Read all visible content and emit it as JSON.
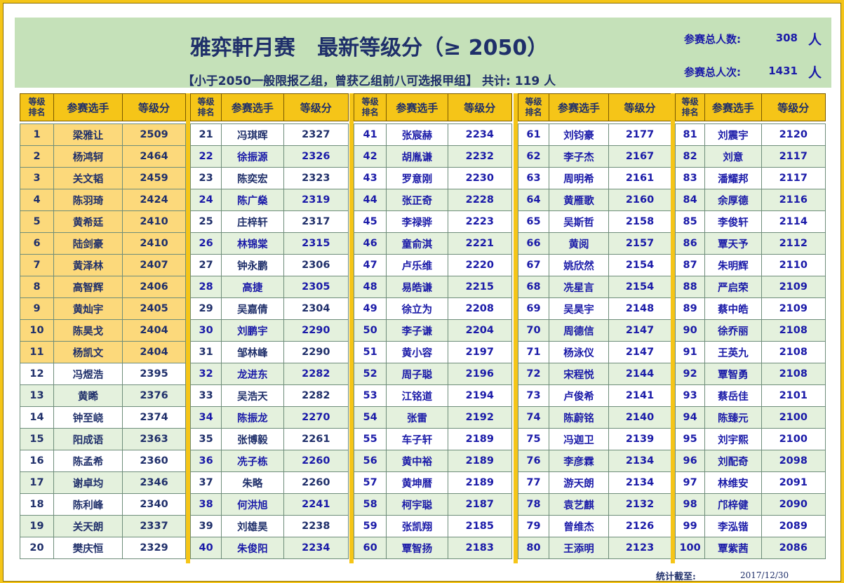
{
  "title": "雅弈軒月赛   最新等级分（≥ 2050）",
  "subtitle": "【小于2050一般限报乙组，曾获乙组前八可选报甲组】 共计: 119 人",
  "stats": {
    "participants_label": "参赛总人数:",
    "participants_value": "308",
    "participants_unit": "人",
    "entries_label": "参赛总人次:",
    "entries_value": "1431",
    "entries_unit": "人"
  },
  "headers": {
    "rank": "等级排名",
    "rank_line1": "等级",
    "rank_line2": "排名",
    "player": "参赛选手",
    "rating": "等级分"
  },
  "colors": {
    "frame": "#f5c518",
    "header_bg": "#c5e1b9",
    "top_rows": "#fcd97b",
    "even_rows": "#e4f1dd",
    "title": "#1f2f6a",
    "values": "#1a1aa8"
  },
  "footer": {
    "cutoff_label": "统计截至:",
    "cutoff_date": "2017/12/30"
  },
  "columns": [
    [
      {
        "rank": "1",
        "name": "梁雅让",
        "rating": "2509"
      },
      {
        "rank": "2",
        "name": "杨鸿轲",
        "rating": "2464"
      },
      {
        "rank": "3",
        "name": "关文韬",
        "rating": "2459"
      },
      {
        "rank": "4",
        "name": "陈羽琦",
        "rating": "2424"
      },
      {
        "rank": "5",
        "name": "黄希廷",
        "rating": "2410"
      },
      {
        "rank": "6",
        "name": "陆剑豪",
        "rating": "2410"
      },
      {
        "rank": "7",
        "name": "黄泽林",
        "rating": "2407"
      },
      {
        "rank": "8",
        "name": "高智辉",
        "rating": "2406"
      },
      {
        "rank": "9",
        "name": "黄灿宇",
        "rating": "2405"
      },
      {
        "rank": "10",
        "name": "陈昊戈",
        "rating": "2404"
      },
      {
        "rank": "11",
        "name": "杨凯文",
        "rating": "2404"
      },
      {
        "rank": "12",
        "name": "冯煜浩",
        "rating": "2395"
      },
      {
        "rank": "13",
        "name": "黄睎",
        "rating": "2376"
      },
      {
        "rank": "14",
        "name": "钟至峣",
        "rating": "2374"
      },
      {
        "rank": "15",
        "name": "阳成语",
        "rating": "2363"
      },
      {
        "rank": "16",
        "name": "陈孟希",
        "rating": "2360"
      },
      {
        "rank": "17",
        "name": "谢卓均",
        "rating": "2346"
      },
      {
        "rank": "18",
        "name": "陈利峰",
        "rating": "2340"
      },
      {
        "rank": "19",
        "name": "关天朗",
        "rating": "2337"
      },
      {
        "rank": "20",
        "name": "樊庆恒",
        "rating": "2329"
      }
    ],
    [
      {
        "rank": "21",
        "name": "冯琪晖",
        "rating": "2327"
      },
      {
        "rank": "22",
        "name": "徐振源",
        "rating": "2326"
      },
      {
        "rank": "23",
        "name": "陈奕宏",
        "rating": "2323"
      },
      {
        "rank": "24",
        "name": "陈广燊",
        "rating": "2319"
      },
      {
        "rank": "25",
        "name": "庄梓轩",
        "rating": "2317"
      },
      {
        "rank": "26",
        "name": "林锦棠",
        "rating": "2315"
      },
      {
        "rank": "27",
        "name": "钟永鹏",
        "rating": "2306"
      },
      {
        "rank": "28",
        "name": "高捷",
        "rating": "2305"
      },
      {
        "rank": "29",
        "name": "吴嘉倩",
        "rating": "2304"
      },
      {
        "rank": "30",
        "name": "刘鹏宇",
        "rating": "2290"
      },
      {
        "rank": "31",
        "name": "邹林峰",
        "rating": "2290"
      },
      {
        "rank": "32",
        "name": "龙进东",
        "rating": "2282"
      },
      {
        "rank": "33",
        "name": "吴浩天",
        "rating": "2282"
      },
      {
        "rank": "34",
        "name": "陈振龙",
        "rating": "2270"
      },
      {
        "rank": "35",
        "name": "张博毅",
        "rating": "2261"
      },
      {
        "rank": "36",
        "name": "冼子栋",
        "rating": "2260"
      },
      {
        "rank": "37",
        "name": "朱略",
        "rating": "2260"
      },
      {
        "rank": "38",
        "name": "何洪旭",
        "rating": "2241"
      },
      {
        "rank": "39",
        "name": "刘雄昊",
        "rating": "2238"
      },
      {
        "rank": "40",
        "name": "朱俊阳",
        "rating": "2234"
      }
    ],
    [
      {
        "rank": "41",
        "name": "张宸赫",
        "rating": "2234"
      },
      {
        "rank": "42",
        "name": "胡胤谦",
        "rating": "2232"
      },
      {
        "rank": "43",
        "name": "罗意刚",
        "rating": "2230"
      },
      {
        "rank": "44",
        "name": "张正奇",
        "rating": "2228"
      },
      {
        "rank": "45",
        "name": "李禄骅",
        "rating": "2223"
      },
      {
        "rank": "46",
        "name": "童俞淇",
        "rating": "2221"
      },
      {
        "rank": "47",
        "name": "卢乐维",
        "rating": "2220"
      },
      {
        "rank": "48",
        "name": "易皓谦",
        "rating": "2215"
      },
      {
        "rank": "49",
        "name": "徐立为",
        "rating": "2208"
      },
      {
        "rank": "50",
        "name": "李子谦",
        "rating": "2204"
      },
      {
        "rank": "51",
        "name": "黄小容",
        "rating": "2197"
      },
      {
        "rank": "52",
        "name": "周子聪",
        "rating": "2196"
      },
      {
        "rank": "53",
        "name": "江铭道",
        "rating": "2194"
      },
      {
        "rank": "54",
        "name": "张雷",
        "rating": "2192"
      },
      {
        "rank": "55",
        "name": "车子轩",
        "rating": "2189"
      },
      {
        "rank": "56",
        "name": "黄中裕",
        "rating": "2189"
      },
      {
        "rank": "57",
        "name": "黄坤暦",
        "rating": "2189"
      },
      {
        "rank": "58",
        "name": "柯宇聪",
        "rating": "2187"
      },
      {
        "rank": "59",
        "name": "张凯翔",
        "rating": "2185"
      },
      {
        "rank": "60",
        "name": "覃智扬",
        "rating": "2183"
      }
    ],
    [
      {
        "rank": "61",
        "name": "刘钧豪",
        "rating": "2177"
      },
      {
        "rank": "62",
        "name": "李子杰",
        "rating": "2167"
      },
      {
        "rank": "63",
        "name": "周明希",
        "rating": "2161"
      },
      {
        "rank": "64",
        "name": "黄雁歌",
        "rating": "2160"
      },
      {
        "rank": "65",
        "name": "吴斯哲",
        "rating": "2158"
      },
      {
        "rank": "66",
        "name": "黄阅",
        "rating": "2157"
      },
      {
        "rank": "67",
        "name": "姚欣然",
        "rating": "2154"
      },
      {
        "rank": "68",
        "name": "冼星言",
        "rating": "2154"
      },
      {
        "rank": "69",
        "name": "吴昊宇",
        "rating": "2148"
      },
      {
        "rank": "70",
        "name": "周德信",
        "rating": "2147"
      },
      {
        "rank": "71",
        "name": "杨泳仪",
        "rating": "2147"
      },
      {
        "rank": "72",
        "name": "宋程悦",
        "rating": "2144"
      },
      {
        "rank": "73",
        "name": "卢俊希",
        "rating": "2141"
      },
      {
        "rank": "74",
        "name": "陈蔚铭",
        "rating": "2140"
      },
      {
        "rank": "75",
        "name": "冯迦卫",
        "rating": "2139"
      },
      {
        "rank": "76",
        "name": "李彦霖",
        "rating": "2134"
      },
      {
        "rank": "77",
        "name": "游天朗",
        "rating": "2134"
      },
      {
        "rank": "78",
        "name": "袁艺麒",
        "rating": "2132"
      },
      {
        "rank": "79",
        "name": "曾维杰",
        "rating": "2126"
      },
      {
        "rank": "80",
        "name": "王添明",
        "rating": "2123"
      }
    ],
    [
      {
        "rank": "81",
        "name": "刘震宇",
        "rating": "2120"
      },
      {
        "rank": "82",
        "name": "刘意",
        "rating": "2117"
      },
      {
        "rank": "83",
        "name": "潘耀邦",
        "rating": "2117"
      },
      {
        "rank": "84",
        "name": "余厚德",
        "rating": "2116"
      },
      {
        "rank": "85",
        "name": "李俊轩",
        "rating": "2114"
      },
      {
        "rank": "86",
        "name": "覃天予",
        "rating": "2112"
      },
      {
        "rank": "87",
        "name": "朱明辉",
        "rating": "2110"
      },
      {
        "rank": "88",
        "name": "严启荣",
        "rating": "2109"
      },
      {
        "rank": "89",
        "name": "蔡中皓",
        "rating": "2109"
      },
      {
        "rank": "90",
        "name": "徐乔丽",
        "rating": "2108"
      },
      {
        "rank": "91",
        "name": "王英九",
        "rating": "2108"
      },
      {
        "rank": "92",
        "name": "覃智勇",
        "rating": "2108"
      },
      {
        "rank": "93",
        "name": "蔡岳佳",
        "rating": "2101"
      },
      {
        "rank": "94",
        "name": "陈臻元",
        "rating": "2100"
      },
      {
        "rank": "95",
        "name": "刘宇熙",
        "rating": "2100"
      },
      {
        "rank": "96",
        "name": "刘配奇",
        "rating": "2098"
      },
      {
        "rank": "97",
        "name": "林维安",
        "rating": "2091"
      },
      {
        "rank": "98",
        "name": "邝梓健",
        "rating": "2090"
      },
      {
        "rank": "99",
        "name": "李泓锴",
        "rating": "2089"
      },
      {
        "rank": "100",
        "name": "覃紫茜",
        "rating": "2086"
      }
    ]
  ]
}
